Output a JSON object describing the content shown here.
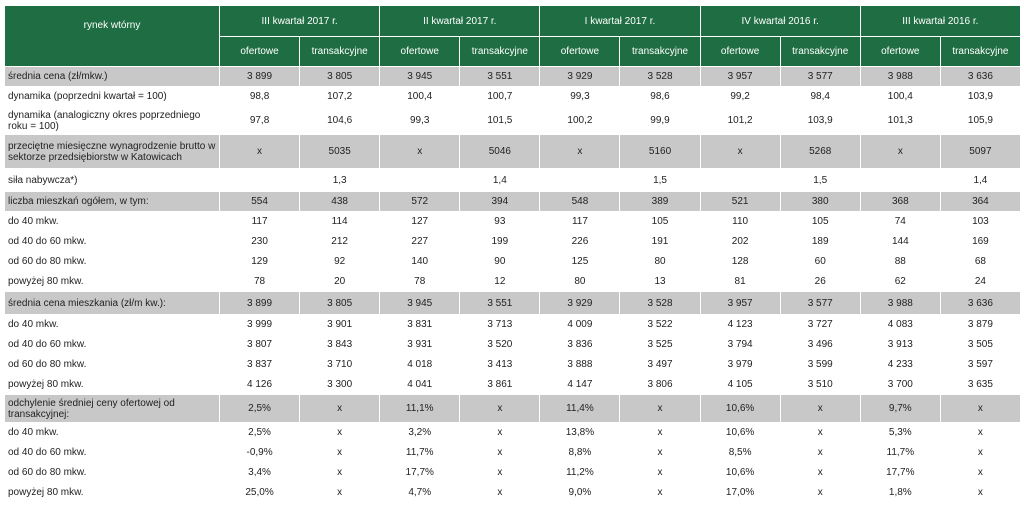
{
  "header": {
    "corner": "rynek wtórny",
    "periods": [
      "III kwartał 2017 r.",
      "II kwartał 2017 r.",
      "I kwartał 2017 r.",
      "IV kwartał 2016 r.",
      "III kwartał 2016 r."
    ],
    "sub": [
      "ofertowe",
      "transakcyjne"
    ]
  },
  "rows": [
    {
      "label": "średnia cena (zł/mkw.)",
      "values": [
        "3 899",
        "3 805",
        "3 945",
        "3 551",
        "3 929",
        "3 528",
        "3 957",
        "3 577",
        "3 988",
        "3 636"
      ],
      "gray": true
    },
    {
      "label": "dynamika (poprzedni kwartał = 100)",
      "values": [
        "98,8",
        "107,2",
        "100,4",
        "100,7",
        "99,3",
        "98,6",
        "99,2",
        "98,4",
        "100,4",
        "103,9"
      ]
    },
    {
      "label": "dynamika (analogiczny okres poprzedniego roku  = 100)",
      "values": [
        "97,8",
        "104,6",
        "99,3",
        "101,5",
        "100,2",
        "99,9",
        "101,2",
        "103,9",
        "101,3",
        "105,9"
      ],
      "tall": true
    },
    {
      "label": "przeciętne miesięczne wynagrodzenie brutto w sektorze przedsiębiorstw w Katowicach",
      "values": [
        "x",
        "5035",
        "x",
        "5046",
        "x",
        "5160",
        "x",
        "5268",
        "x",
        "5097"
      ],
      "gray": true,
      "taller": true
    },
    {
      "label": "siła nabywcza*)",
      "values": [
        "",
        "1,3",
        "",
        "1,4",
        "",
        "1,5",
        "",
        "1,5",
        "",
        "1,4"
      ],
      "spacer": true
    },
    {
      "label": "liczba mieszkań ogółem, w tym:",
      "values": [
        "554",
        "438",
        "572",
        "394",
        "548",
        "389",
        "521",
        "380",
        "368",
        "364"
      ],
      "gray": true
    },
    {
      "label": "do 40 mkw.",
      "values": [
        "117",
        "114",
        "127",
        "93",
        "117",
        "105",
        "110",
        "105",
        "74",
        "103"
      ]
    },
    {
      "label": "od 40 do 60 mkw.",
      "values": [
        "230",
        "212",
        "227",
        "199",
        "226",
        "191",
        "202",
        "189",
        "144",
        "169"
      ]
    },
    {
      "label": "od 60 do 80 mkw.",
      "values": [
        "129",
        "92",
        "140",
        "90",
        "125",
        "80",
        "128",
        "60",
        "88",
        "68"
      ]
    },
    {
      "label": "powyżej 80 mkw.",
      "values": [
        "78",
        "20",
        "78",
        "12",
        "80",
        "13",
        "81",
        "26",
        "62",
        "24"
      ]
    },
    {
      "label": "średnia cena mieszkania (zł/m kw.):",
      "values": [
        "3 899",
        "3 805",
        "3 945",
        "3 551",
        "3 929",
        "3 528",
        "3 957",
        "3 577",
        "3 988",
        "3 636"
      ],
      "gray": true,
      "spacer": true
    },
    {
      "label": "do 40 mkw.",
      "values": [
        "3 999",
        "3 901",
        "3 831",
        "3 713",
        "4 009",
        "3 522",
        "4 123",
        "3 727",
        "4 083",
        "3 879"
      ]
    },
    {
      "label": "od 40 do 60 mkw.",
      "values": [
        "3 807",
        "3 843",
        "3 931",
        "3 520",
        "3 836",
        "3 525",
        "3 794",
        "3 496",
        "3 913",
        "3 505"
      ]
    },
    {
      "label": "od 60 do 80 mkw.",
      "values": [
        "3 837",
        "3 710",
        "4 018",
        "3 413",
        "3 888",
        "3 497",
        "3 979",
        "3 599",
        "4 233",
        "3 597"
      ]
    },
    {
      "label": "powyżej 80 mkw.",
      "values": [
        "4 126",
        "3 300",
        "4 041",
        "3 861",
        "4 147",
        "3 806",
        "4 105",
        "3 510",
        "3 700",
        "3 635"
      ]
    },
    {
      "label": "odchylenie średniej ceny ofertowej od transakcyjnej:",
      "values": [
        "2,5%",
        "x",
        "11,1%",
        "x",
        "11,4%",
        "x",
        "10,6%",
        "x",
        "9,7%",
        "x"
      ],
      "gray": true,
      "tall": true
    },
    {
      "label": "do 40 mkw.",
      "values": [
        "2,5%",
        "x",
        "3,2%",
        "x",
        "13,8%",
        "x",
        "10,6%",
        "x",
        "5,3%",
        "x"
      ]
    },
    {
      "label": "od 40 do 60 mkw.",
      "values": [
        "-0,9%",
        "x",
        "11,7%",
        "x",
        "8,8%",
        "x",
        "8,5%",
        "x",
        "11,7%",
        "x"
      ]
    },
    {
      "label": "od 60 do 80 mkw.",
      "values": [
        "3,4%",
        "x",
        "17,7%",
        "x",
        "11,2%",
        "x",
        "10,6%",
        "x",
        "17,7%",
        "x"
      ]
    },
    {
      "label": "powyżej 80 mkw.",
      "values": [
        "25,0%",
        "x",
        "4,7%",
        "x",
        "9,0%",
        "x",
        "17,0%",
        "x",
        "1,8%",
        "x"
      ]
    }
  ]
}
